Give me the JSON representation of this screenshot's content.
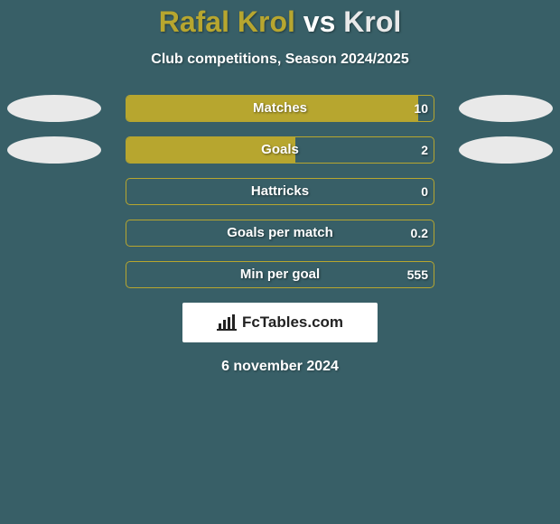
{
  "header": {
    "player1": "Rafal Krol",
    "vs": "vs",
    "player2": "Krol",
    "player1_color": "#b7a62f",
    "player2_color": "#e9e9e9",
    "subtitle": "Club competitions, Season 2024/2025"
  },
  "chart": {
    "track_border_color": "#b7a62f",
    "bar_left_color": "#b7a62f",
    "bar_right_color": "#e9e9e9",
    "oval_left_color": "#e9e9e9",
    "oval_right_color": "#e9e9e9",
    "background_color": "#385f67",
    "text_color": "#ffffff",
    "label_fontsize": 15,
    "value_fontsize": 14,
    "rows": [
      {
        "label": "Matches",
        "left_val": "",
        "right_val": "10",
        "left_pct": 95,
        "right_pct": 0,
        "show_ovals": true
      },
      {
        "label": "Goals",
        "left_val": "",
        "right_val": "2",
        "left_pct": 55,
        "right_pct": 0,
        "show_ovals": true
      },
      {
        "label": "Hattricks",
        "left_val": "",
        "right_val": "0",
        "left_pct": 0,
        "right_pct": 0,
        "show_ovals": false
      },
      {
        "label": "Goals per match",
        "left_val": "",
        "right_val": "0.2",
        "left_pct": 0,
        "right_pct": 0,
        "show_ovals": false
      },
      {
        "label": "Min per goal",
        "left_val": "",
        "right_val": "555",
        "left_pct": 0,
        "right_pct": 0,
        "show_ovals": false
      }
    ]
  },
  "footer": {
    "logo_text": "FcTables.com",
    "date": "6 november 2024"
  }
}
